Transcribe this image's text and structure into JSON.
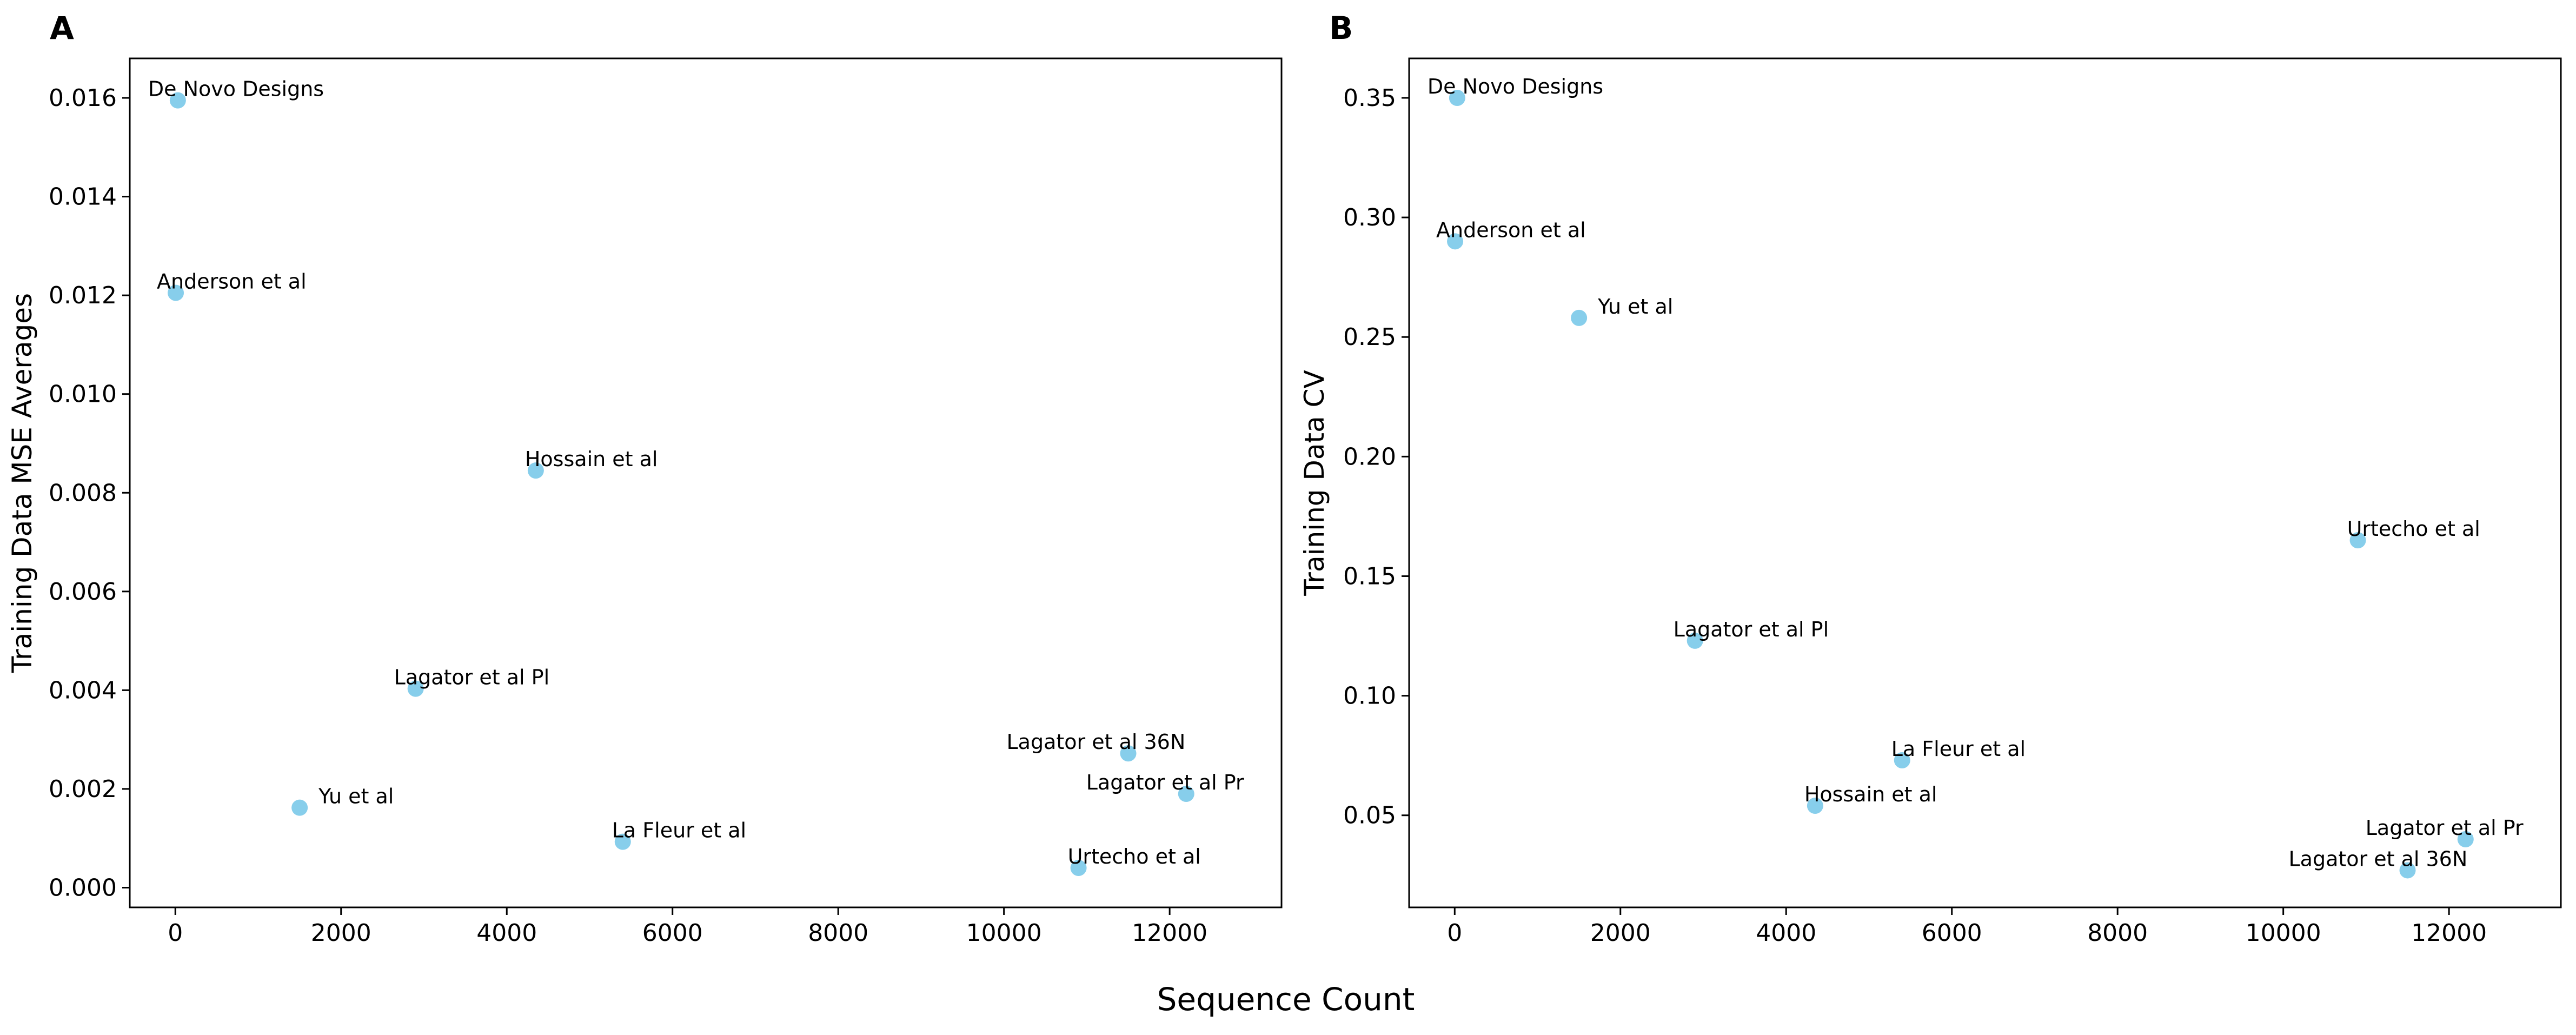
{
  "figure": {
    "shared_xlabel": "Sequence Count"
  },
  "colors": {
    "point": "#87ceeb",
    "axes": "#000000",
    "background": "#ffffff"
  },
  "chart_data": [
    {
      "type": "scatter",
      "panel_label": "A",
      "title": "",
      "xlabel": "",
      "ylabel": "Training Data MSE Averages",
      "xlim": [
        -550,
        13350
      ],
      "ylim": [
        -0.0004,
        0.0168
      ],
      "xticks": [
        0,
        2000,
        4000,
        6000,
        8000,
        10000,
        12000
      ],
      "yticks": [
        0.0,
        0.002,
        0.004,
        0.006,
        0.008,
        0.01,
        0.012,
        0.014,
        0.016
      ],
      "ytick_labels": [
        "0.000",
        "0.002",
        "0.004",
        "0.006",
        "0.008",
        "0.010",
        "0.012",
        "0.014",
        "0.016"
      ],
      "grid": false,
      "points": [
        {
          "label": "De Novo Designs",
          "x": 30,
          "y": 0.01595
        },
        {
          "label": "Anderson et al",
          "x": 5,
          "y": 0.01205
        },
        {
          "label": "Hossain et al",
          "x": 4350,
          "y": 0.00845
        },
        {
          "label": "Lagator et al Pl",
          "x": 2900,
          "y": 0.00403
        },
        {
          "label": "Yu et al",
          "x": 1500,
          "y": 0.00162
        },
        {
          "label": "La Fleur et al",
          "x": 5400,
          "y": 0.00093
        },
        {
          "label": "Lagator et al 36N",
          "x": 11500,
          "y": 0.00272
        },
        {
          "label": "Lagator et al Pr",
          "x": 12200,
          "y": 0.0019
        },
        {
          "label": "Urtecho et al",
          "x": 10900,
          "y": 0.0004
        }
      ]
    },
    {
      "type": "scatter",
      "panel_label": "B",
      "title": "",
      "xlabel": "",
      "ylabel": "Training Data CV",
      "xlim": [
        -550,
        13350
      ],
      "ylim": [
        0.0115,
        0.3665
      ],
      "xticks": [
        0,
        2000,
        4000,
        6000,
        8000,
        10000,
        12000
      ],
      "yticks": [
        0.05,
        0.1,
        0.15,
        0.2,
        0.25,
        0.3,
        0.35
      ],
      "ytick_labels": [
        "0.05",
        "0.10",
        "0.15",
        "0.20",
        "0.25",
        "0.30",
        "0.35"
      ],
      "grid": false,
      "points": [
        {
          "label": "De Novo Designs",
          "x": 30,
          "y": 0.35
        },
        {
          "label": "Anderson et al",
          "x": 5,
          "y": 0.29
        },
        {
          "label": "Yu et al",
          "x": 1500,
          "y": 0.258
        },
        {
          "label": "Urtecho et al",
          "x": 10900,
          "y": 0.165
        },
        {
          "label": "Lagator et al Pl",
          "x": 2900,
          "y": 0.123
        },
        {
          "label": "La Fleur et al",
          "x": 5400,
          "y": 0.073
        },
        {
          "label": "Hossain et al",
          "x": 4350,
          "y": 0.054
        },
        {
          "label": "Lagator et al Pr",
          "x": 12200,
          "y": 0.04
        },
        {
          "label": "Lagator et al 36N",
          "x": 11500,
          "y": 0.027
        }
      ]
    }
  ]
}
